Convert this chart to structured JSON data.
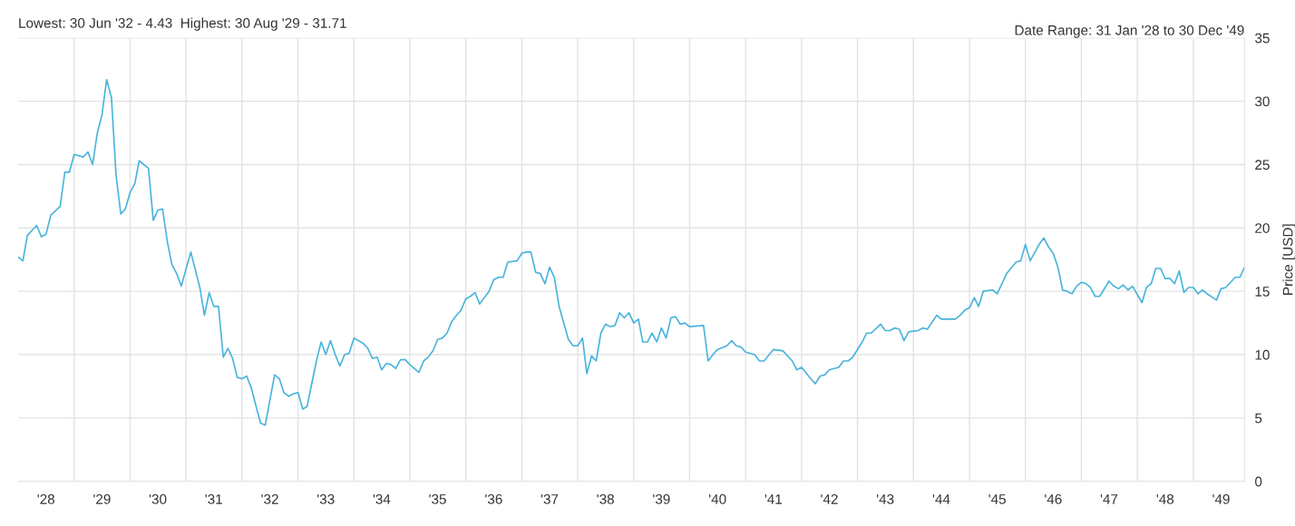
{
  "chart_data": {
    "type": "line",
    "title": "Lowest: 30 Jun '32 - 4.43  Highest: 30 Aug '29 - 31.71",
    "annotations": [
      "Date Range: 31 Jan '28 to 30 Dec '49"
    ],
    "ylabel": "Price [USD]",
    "x": [
      "1928-01",
      "1928-02",
      "1928-03",
      "1928-05",
      "1928-06",
      "1928-07",
      "1928-08",
      "1928-10",
      "1928-11",
      "1928-12",
      "1929-01",
      "1929-03",
      "1929-04",
      "1929-05",
      "1929-06",
      "1929-07",
      "1929-08",
      "1929-09",
      "1929-10",
      "1929-11",
      "1929-12",
      "1930-01",
      "1930-02",
      "1930-03",
      "1930-05",
      "1930-06",
      "1930-07",
      "1930-08",
      "1930-09",
      "1930-10",
      "1930-11",
      "1930-12",
      "1931-02",
      "1931-04",
      "1931-05",
      "1931-06",
      "1931-07",
      "1931-08",
      "1931-09",
      "1931-10",
      "1931-11",
      "1931-12",
      "1932-01",
      "1932-02",
      "1932-03",
      "1932-05",
      "1932-06",
      "1932-08",
      "1932-09",
      "1932-10",
      "1932-11",
      "1932-12",
      "1933-01",
      "1933-02",
      "1933-03",
      "1933-05",
      "1933-06",
      "1933-07",
      "1933-08",
      "1933-09",
      "1933-10",
      "1933-11",
      "1933-12",
      "1934-01",
      "1934-03",
      "1934-04",
      "1934-05",
      "1934-06",
      "1934-07",
      "1934-08",
      "1934-09",
      "1934-10",
      "1934-11",
      "1934-12",
      "1935-01",
      "1935-03",
      "1935-04",
      "1935-05",
      "1935-06",
      "1935-07",
      "1935-08",
      "1935-09",
      "1935-10",
      "1935-11",
      "1935-12",
      "1936-01",
      "1936-02",
      "1936-03",
      "1936-04",
      "1936-05",
      "1936-06",
      "1936-07",
      "1936-08",
      "1936-09",
      "1936-10",
      "1936-12",
      "1937-01",
      "1937-02",
      "1937-03",
      "1937-04",
      "1937-05",
      "1937-06",
      "1937-07",
      "1937-08",
      "1937-09",
      "1937-11",
      "1937-12",
      "1938-01",
      "1938-02",
      "1938-03",
      "1938-04",
      "1938-05",
      "1938-06",
      "1938-07",
      "1938-08",
      "1938-09",
      "1938-10",
      "1938-11",
      "1938-12",
      "1939-01",
      "1939-02",
      "1939-03",
      "1939-04",
      "1939-05",
      "1939-06",
      "1939-07",
      "1939-08",
      "1939-09",
      "1939-10",
      "1939-11",
      "1939-12",
      "1940-01",
      "1940-04",
      "1940-05",
      "1940-06",
      "1940-07",
      "1940-09",
      "1940-10",
      "1940-11",
      "1940-12",
      "1941-01",
      "1941-03",
      "1941-04",
      "1941-05",
      "1941-07",
      "1941-09",
      "1941-11",
      "1941-12",
      "1942-01",
      "1942-03",
      "1942-04",
      "1942-05",
      "1942-06",
      "1942-07",
      "1942-09",
      "1942-10",
      "1942-11",
      "1942-12",
      "1943-02",
      "1943-03",
      "1943-04",
      "1943-06",
      "1943-07",
      "1943-08",
      "1943-09",
      "1943-10",
      "1943-11",
      "1943-12",
      "1944-02",
      "1944-03",
      "1944-04",
      "1944-06",
      "1944-07",
      "1944-10",
      "1944-11",
      "1944-12",
      "1945-01",
      "1945-02",
      "1945-03",
      "1945-04",
      "1945-06",
      "1945-07",
      "1945-08",
      "1945-09",
      "1945-11",
      "1945-12",
      "1946-01",
      "1946-02",
      "1946-04",
      "1946-05",
      "1946-06",
      "1946-07",
      "1946-08",
      "1946-09",
      "1946-10",
      "1946-11",
      "1946-12",
      "1947-01",
      "1947-02",
      "1947-03",
      "1947-04",
      "1947-05",
      "1947-07",
      "1947-08",
      "1947-09",
      "1947-10",
      "1947-11",
      "1947-12",
      "1948-02",
      "1948-03",
      "1948-04",
      "1948-05",
      "1948-06",
      "1948-07",
      "1948-08",
      "1948-09",
      "1948-10",
      "1948-11",
      "1948-12",
      "1949-01",
      "1949-02",
      "1949-03",
      "1949-04",
      "1949-06",
      "1949-07",
      "1949-08",
      "1949-10",
      "1949-11",
      "1949-12"
    ],
    "series": [
      {
        "color": "#4ab4dc",
        "values": [
          17.7,
          17.4,
          19.4,
          20.2,
          19.3,
          19.5,
          21.0,
          21.7,
          24.4,
          24.4,
          25.8,
          25.6,
          26.0,
          25.0,
          27.5,
          28.9,
          31.71,
          30.3,
          24.2,
          21.1,
          21.5,
          22.8,
          23.5,
          25.3,
          24.7,
          20.6,
          21.4,
          21.5,
          18.9,
          17.1,
          16.4,
          15.4,
          18.1,
          15.3,
          13.1,
          14.9,
          13.8,
          13.8,
          9.8,
          10.5,
          9.7,
          8.2,
          8.1,
          8.3,
          7.4,
          4.6,
          4.43,
          8.4,
          8.1,
          7.0,
          6.7,
          6.9,
          7.0,
          5.7,
          5.9,
          9.5,
          11.0,
          10.0,
          11.1,
          10.0,
          9.1,
          10.0,
          10.1,
          11.3,
          10.9,
          10.5,
          9.7,
          9.8,
          8.8,
          9.3,
          9.2,
          8.9,
          9.6,
          9.6,
          9.2,
          8.6,
          9.5,
          9.8,
          10.3,
          11.2,
          11.3,
          11.7,
          12.6,
          13.1,
          13.5,
          14.4,
          14.6,
          14.9,
          14.0,
          14.5,
          15.0,
          15.9,
          16.1,
          16.1,
          17.3,
          17.4,
          18.0,
          18.1,
          18.1,
          16.5,
          16.4,
          15.6,
          16.9,
          16.1,
          13.8,
          11.2,
          10.7,
          10.7,
          11.3,
          8.5,
          9.9,
          9.5,
          11.7,
          12.4,
          12.2,
          12.3,
          13.3,
          12.9,
          13.3,
          12.5,
          12.8,
          11.0,
          11.0,
          11.7,
          11.0,
          12.1,
          11.3,
          12.9,
          13.0,
          12.4,
          12.5,
          12.2,
          12.3,
          9.5,
          10.0,
          10.4,
          10.7,
          11.1,
          10.7,
          10.6,
          10.2,
          10.0,
          9.5,
          9.5,
          10.4,
          10.3,
          9.5,
          8.8,
          9.0,
          8.1,
          7.7,
          8.3,
          8.4,
          8.8,
          9.0,
          9.5,
          9.5,
          9.8,
          11.0,
          11.7,
          11.7,
          12.4,
          11.9,
          11.9,
          12.1,
          12.0,
          11.1,
          11.8,
          11.9,
          12.1,
          12.0,
          13.1,
          12.8,
          12.8,
          13.1,
          13.5,
          13.7,
          14.5,
          13.8,
          15.0,
          15.1,
          14.8,
          15.6,
          16.4,
          17.3,
          17.4,
          18.7,
          17.4,
          18.7,
          19.2,
          18.5,
          18.0,
          16.9,
          15.1,
          15.0,
          14.8,
          15.4,
          15.7,
          15.6,
          15.3,
          14.6,
          14.6,
          15.8,
          15.4,
          15.2,
          15.5,
          15.1,
          15.4,
          14.1,
          15.3,
          15.6,
          16.8,
          16.8,
          16.0,
          16.0,
          15.6,
          16.6,
          14.9,
          15.3,
          15.3,
          14.8,
          15.1,
          14.8,
          14.3,
          15.2,
          15.3,
          16.1,
          16.1,
          16.9
        ]
      }
    ],
    "xlim": [
      "1928-01",
      "1949-12"
    ],
    "xticks": [
      {
        "value": "1928-07",
        "label": "'28"
      },
      {
        "value": "1929-01",
        "label": null
      },
      {
        "value": "1929-07",
        "label": "'29"
      },
      {
        "value": "1930-01",
        "label": null
      },
      {
        "value": "1930-07",
        "label": "'30"
      },
      {
        "value": "1931-01",
        "label": null
      },
      {
        "value": "1931-07",
        "label": "'31"
      },
      {
        "value": "1932-01",
        "label": null
      },
      {
        "value": "1932-07",
        "label": "'32"
      },
      {
        "value": "1933-01",
        "label": null
      },
      {
        "value": "1933-07",
        "label": "'33"
      },
      {
        "value": "1934-01",
        "label": null
      },
      {
        "value": "1934-07",
        "label": "'34"
      },
      {
        "value": "1935-01",
        "label": null
      },
      {
        "value": "1935-07",
        "label": "'35"
      },
      {
        "value": "1936-01",
        "label": null
      },
      {
        "value": "1936-07",
        "label": "'36"
      },
      {
        "value": "1937-01",
        "label": null
      },
      {
        "value": "1937-07",
        "label": "'37"
      },
      {
        "value": "1938-01",
        "label": null
      },
      {
        "value": "1938-07",
        "label": "'38"
      },
      {
        "value": "1939-01",
        "label": null
      },
      {
        "value": "1939-07",
        "label": "'39"
      },
      {
        "value": "1940-01",
        "label": null
      },
      {
        "value": "1940-07",
        "label": "'40"
      },
      {
        "value": "1941-01",
        "label": null
      },
      {
        "value": "1941-07",
        "label": "'41"
      },
      {
        "value": "1942-01",
        "label": null
      },
      {
        "value": "1942-07",
        "label": "'42"
      },
      {
        "value": "1943-01",
        "label": null
      },
      {
        "value": "1943-07",
        "label": "'43"
      },
      {
        "value": "1944-01",
        "label": null
      },
      {
        "value": "1944-07",
        "label": "'44"
      },
      {
        "value": "1945-01",
        "label": null
      },
      {
        "value": "1945-07",
        "label": "'45"
      },
      {
        "value": "1946-01",
        "label": null
      },
      {
        "value": "1946-07",
        "label": "'46"
      },
      {
        "value": "1947-01",
        "label": null
      },
      {
        "value": "1947-07",
        "label": "'47"
      },
      {
        "value": "1948-01",
        "label": null
      },
      {
        "value": "1948-07",
        "label": "'48"
      },
      {
        "value": "1949-01",
        "label": null
      },
      {
        "value": "1949-07",
        "label": "'49"
      }
    ],
    "ylim": [
      0,
      35
    ],
    "yticks": [
      0,
      5,
      10,
      15,
      20,
      25,
      30,
      35
    ],
    "grid": true,
    "legend": false
  }
}
